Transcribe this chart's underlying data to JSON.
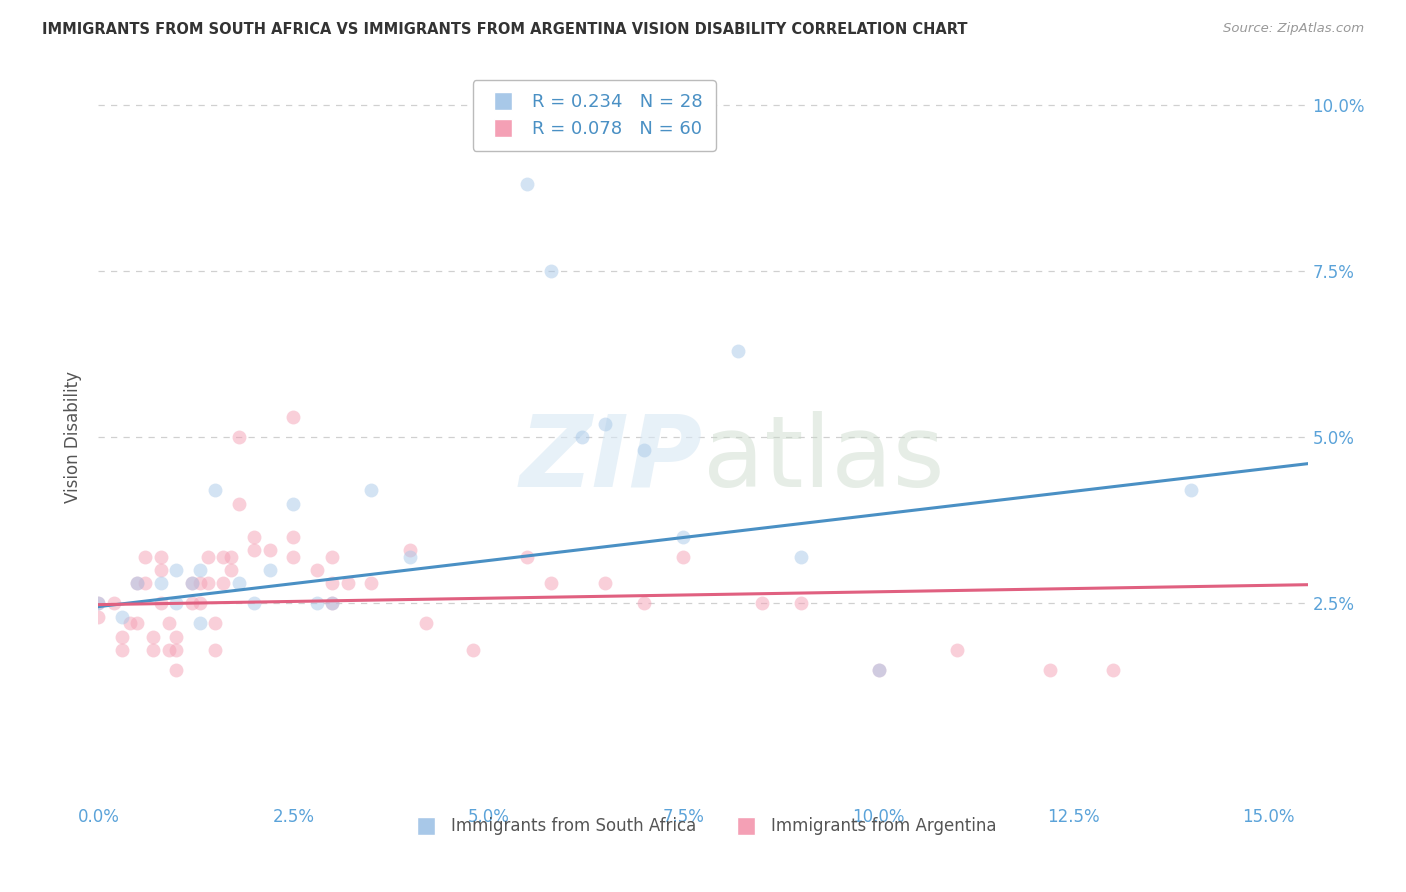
{
  "title": "IMMIGRANTS FROM SOUTH AFRICA VS IMMIGRANTS FROM ARGENTINA VISION DISABILITY CORRELATION CHART",
  "source": "Source: ZipAtlas.com",
  "ylabel": "Vision Disability",
  "xlabel_ticks": [
    "0.0%",
    "2.5%",
    "5.0%",
    "7.5%",
    "10.0%",
    "12.5%",
    "15.0%"
  ],
  "ylabel_ticks_right": [
    "2.5%",
    "5.0%",
    "7.5%",
    "10.0%"
  ],
  "xlim": [
    0.0,
    0.155
  ],
  "ylim": [
    -0.005,
    0.105
  ],
  "blue_color": "#a8c8e8",
  "pink_color": "#f4a0b5",
  "blue_line_color": "#4a90c4",
  "pink_line_color": "#e06080",
  "legend_blue_R": "R = 0.234",
  "legend_blue_N": "N = 28",
  "legend_pink_R": "R = 0.078",
  "legend_pink_N": "N = 60",
  "blue_points_x": [
    0.0,
    0.003,
    0.005,
    0.008,
    0.01,
    0.01,
    0.012,
    0.013,
    0.013,
    0.015,
    0.018,
    0.02,
    0.022,
    0.025,
    0.028,
    0.03,
    0.035,
    0.04,
    0.055,
    0.058,
    0.062,
    0.065,
    0.07,
    0.075,
    0.082,
    0.09,
    0.1,
    0.14
  ],
  "blue_points_y": [
    0.025,
    0.023,
    0.028,
    0.028,
    0.03,
    0.025,
    0.028,
    0.03,
    0.022,
    0.042,
    0.028,
    0.025,
    0.03,
    0.04,
    0.025,
    0.025,
    0.042,
    0.032,
    0.088,
    0.075,
    0.05,
    0.052,
    0.048,
    0.035,
    0.063,
    0.032,
    0.015,
    0.042
  ],
  "pink_points_x": [
    0.0,
    0.0,
    0.002,
    0.003,
    0.003,
    0.004,
    0.005,
    0.005,
    0.006,
    0.006,
    0.007,
    0.007,
    0.008,
    0.008,
    0.008,
    0.009,
    0.009,
    0.01,
    0.01,
    0.01,
    0.012,
    0.012,
    0.013,
    0.013,
    0.014,
    0.014,
    0.015,
    0.015,
    0.016,
    0.016,
    0.017,
    0.017,
    0.018,
    0.018,
    0.02,
    0.02,
    0.022,
    0.025,
    0.025,
    0.025,
    0.028,
    0.03,
    0.03,
    0.03,
    0.032,
    0.035,
    0.04,
    0.042,
    0.048,
    0.055,
    0.058,
    0.065,
    0.07,
    0.075,
    0.085,
    0.09,
    0.1,
    0.11,
    0.122,
    0.13
  ],
  "pink_points_y": [
    0.025,
    0.023,
    0.025,
    0.02,
    0.018,
    0.022,
    0.028,
    0.022,
    0.032,
    0.028,
    0.02,
    0.018,
    0.032,
    0.03,
    0.025,
    0.022,
    0.018,
    0.02,
    0.018,
    0.015,
    0.028,
    0.025,
    0.028,
    0.025,
    0.032,
    0.028,
    0.022,
    0.018,
    0.032,
    0.028,
    0.032,
    0.03,
    0.05,
    0.04,
    0.035,
    0.033,
    0.033,
    0.053,
    0.035,
    0.032,
    0.03,
    0.032,
    0.028,
    0.025,
    0.028,
    0.028,
    0.033,
    0.022,
    0.018,
    0.032,
    0.028,
    0.028,
    0.025,
    0.032,
    0.025,
    0.025,
    0.015,
    0.018,
    0.015,
    0.015
  ],
  "blue_line_y_start": 0.0245,
  "blue_line_y_end": 0.046,
  "pink_line_y_start": 0.0248,
  "pink_line_y_end": 0.0278,
  "marker_size": 100,
  "marker_alpha": 0.5,
  "watermark_zip": "ZIP",
  "watermark_atlas": "atlas",
  "background_color": "#ffffff",
  "grid_color": "#d0d0d0",
  "title_color": "#333333",
  "axis_tick_color": "#5ba3d9",
  "ylabel_color": "#555555"
}
